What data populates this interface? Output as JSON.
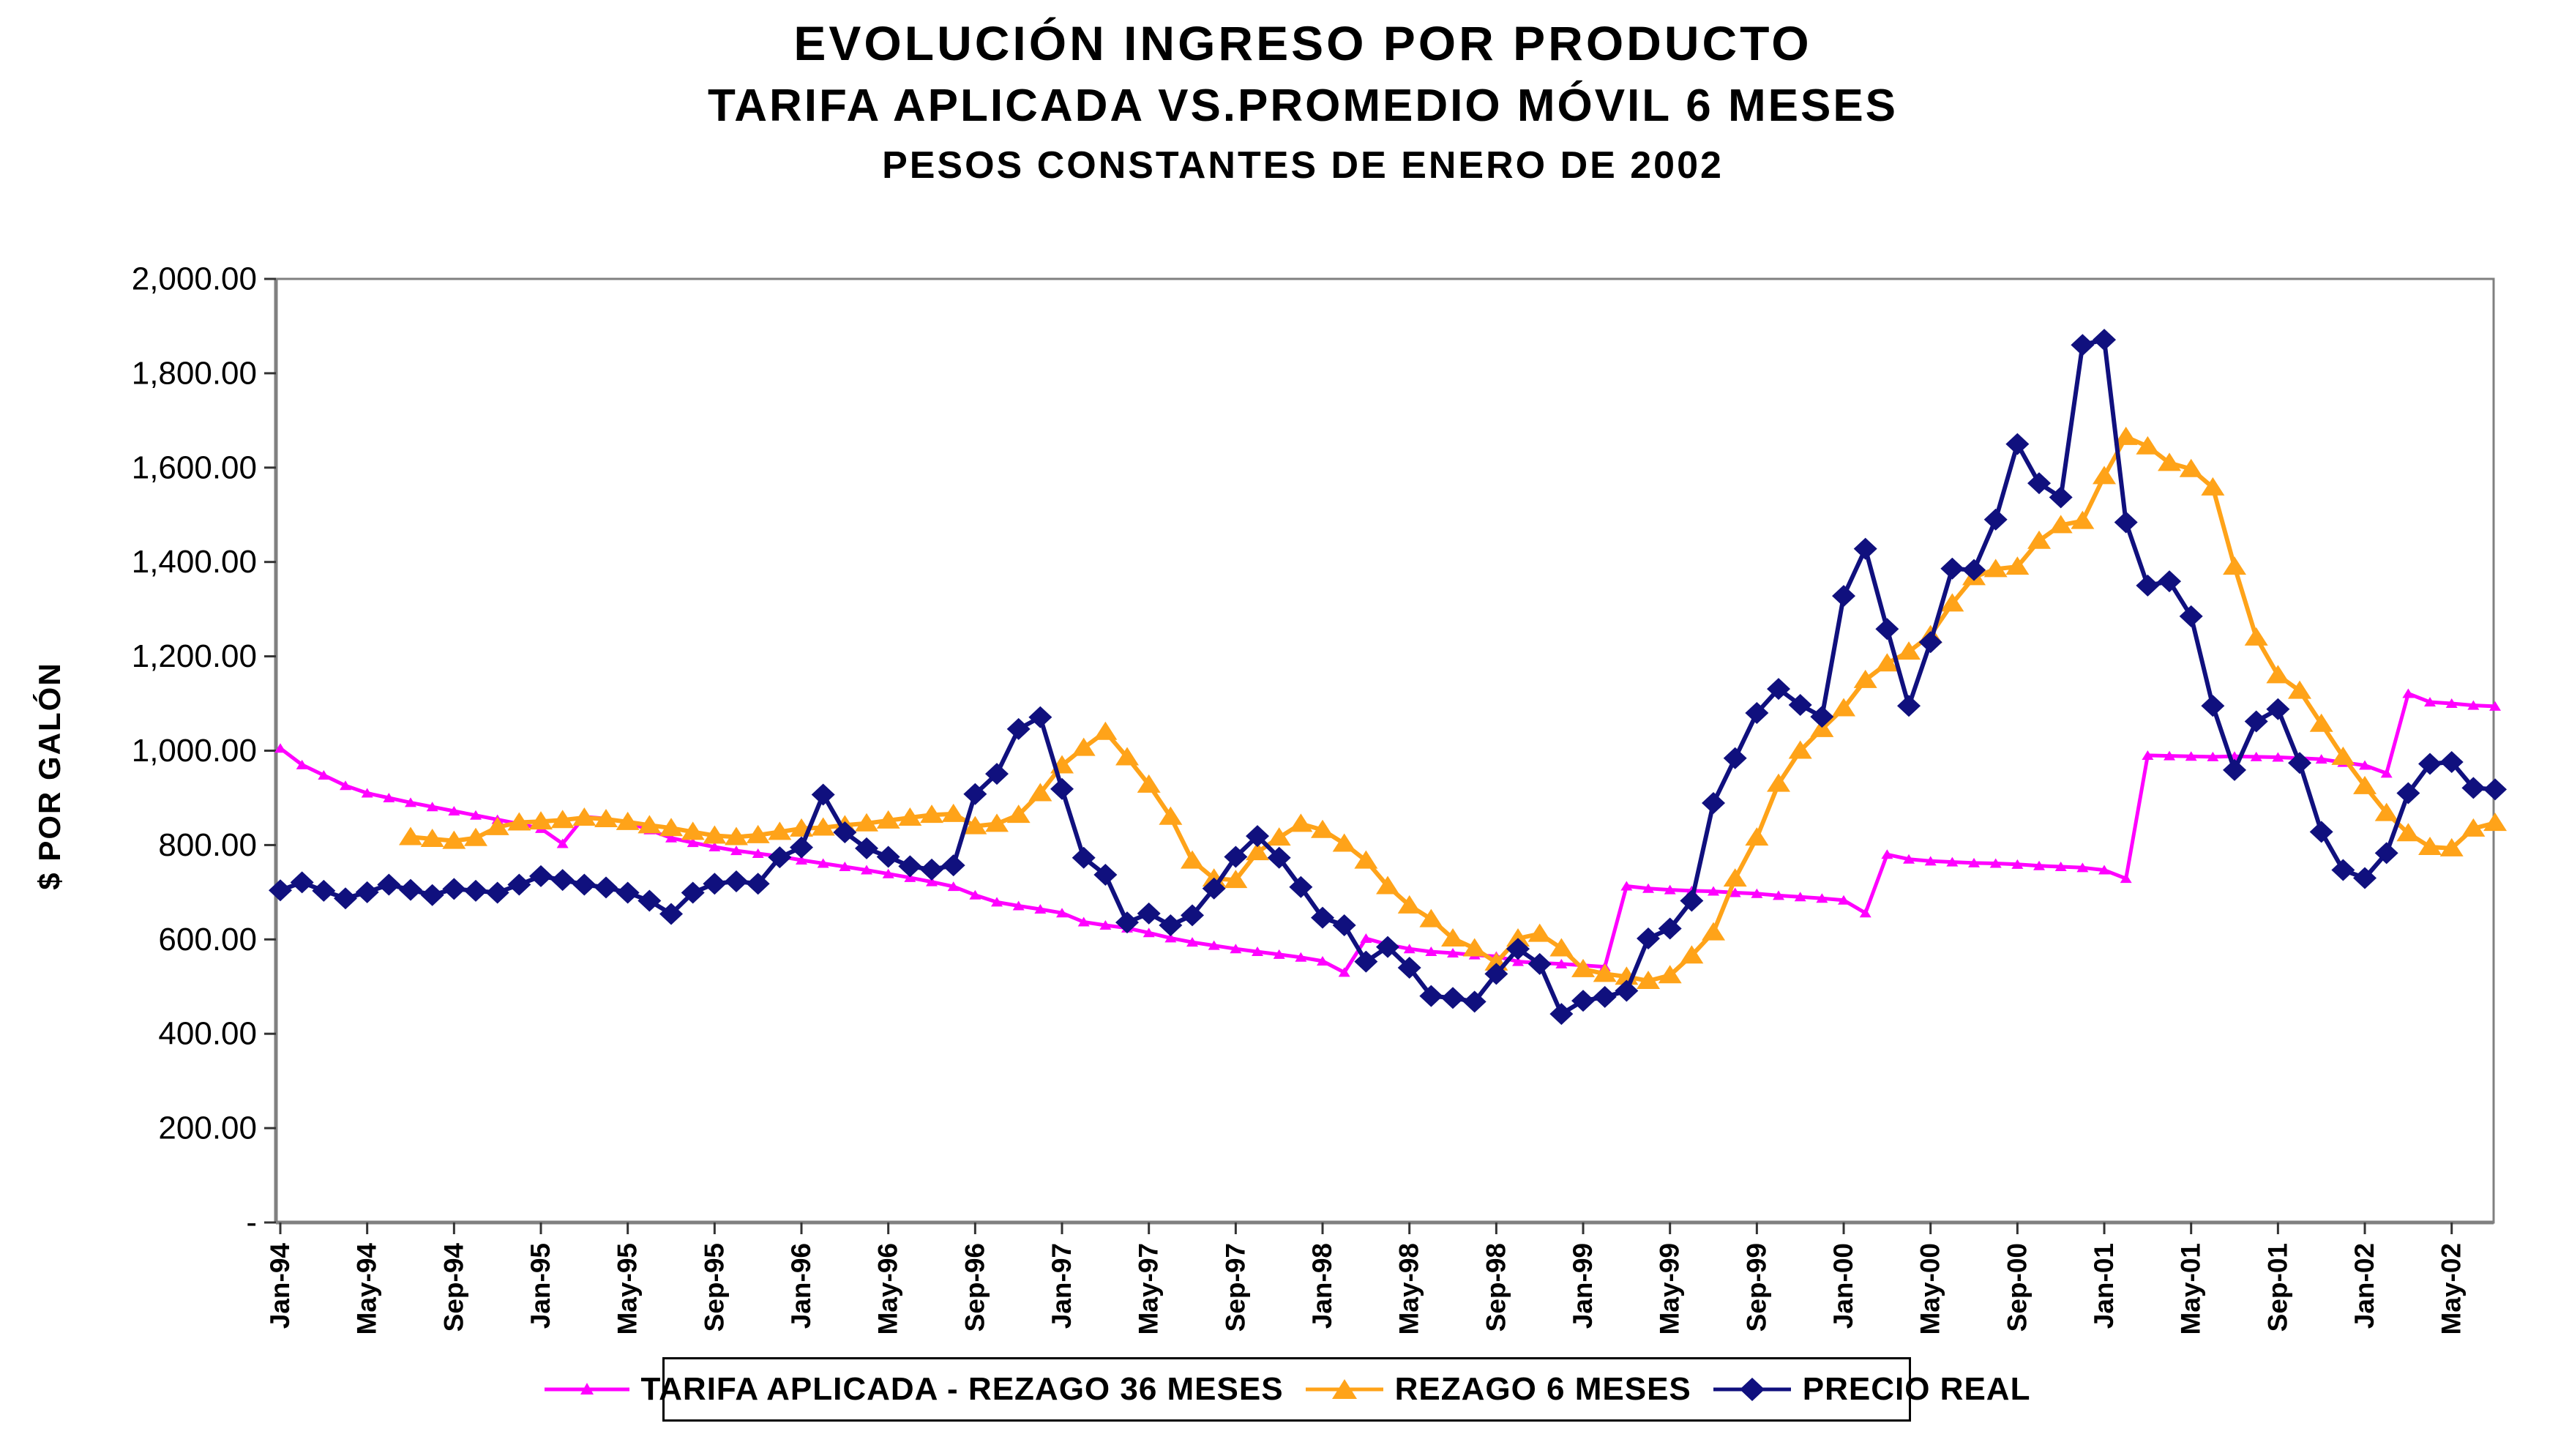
{
  "title": {
    "line1": "EVOLUCIÓN INGRESO POR PRODUCTO",
    "line2": "TARIFA APLICADA VS.PROMEDIO MÓVIL 6 MESES",
    "line3": "PESOS CONSTANTES DE ENERO DE 2002"
  },
  "y_axis": {
    "title": "$ POR GALÓN",
    "tick_labels": [
      "2,000.00",
      "1,800.00",
      "1,600.00",
      "1,400.00",
      "1,200.00",
      "1,000.00",
      "800.00",
      "600.00",
      "400.00",
      "200.00",
      "-"
    ],
    "min": 0,
    "max": 2000,
    "step": 200
  },
  "x_axis": {
    "tick_labels": [
      "Jan-94",
      "May-94",
      "Sep-94",
      "Jan-95",
      "May-95",
      "Sep-95",
      "Jan-96",
      "May-96",
      "Sep-96",
      "Jan-97",
      "May-97",
      "Sep-97",
      "Jan-98",
      "May-98",
      "Sep-98",
      "Jan-99",
      "May-99",
      "Sep-99",
      "Jan-00",
      "May-00",
      "Sep-00",
      "Jan-01",
      "May-01",
      "Sep-01",
      "Jan-02",
      "May-02"
    ]
  },
  "legend": [
    {
      "label": "TARIFA APLICADA - REZAGO 36 MESES",
      "color": "#FF00FF",
      "marker": "small-triangle"
    },
    {
      "label": "REZAGO 6 MESES",
      "color": "#FFA319",
      "marker": "triangle"
    },
    {
      "label": "PRECIO REAL",
      "color": "#10107E",
      "marker": "diamond"
    }
  ],
  "colors": {
    "tarifa": "#FF00FF",
    "rezago6": "#FFA319",
    "precio_real": "#10107E",
    "plot_border": "#808080",
    "tick": "#333333",
    "text": "#000000",
    "background": "#FFFFFF"
  },
  "chart_data": {
    "type": "line",
    "title": "EVOLUCIÓN INGRESO POR PRODUCTO - TARIFA APLICADA VS.PROMEDIO MÓVIL 6 MESES - PESOS CONSTANTES DE ENERO DE 2002",
    "xlabel": "",
    "ylabel": "$ POR GALÓN",
    "ylim": [
      0,
      2000
    ],
    "grid": false,
    "legend_position": "bottom",
    "months": [
      "Jan-94",
      "Feb-94",
      "Mar-94",
      "Apr-94",
      "May-94",
      "Jun-94",
      "Jul-94",
      "Aug-94",
      "Sep-94",
      "Oct-94",
      "Nov-94",
      "Dec-94",
      "Jan-95",
      "Feb-95",
      "Mar-95",
      "Apr-95",
      "May-95",
      "Jun-95",
      "Jul-95",
      "Aug-95",
      "Sep-95",
      "Oct-95",
      "Nov-95",
      "Dec-95",
      "Jan-96",
      "Feb-96",
      "Mar-96",
      "Apr-96",
      "May-96",
      "Jun-96",
      "Jul-96",
      "Aug-96",
      "Sep-96",
      "Oct-96",
      "Nov-96",
      "Dec-96",
      "Jan-97",
      "Feb-97",
      "Mar-97",
      "Apr-97",
      "May-97",
      "Jun-97",
      "Jul-97",
      "Aug-97",
      "Sep-97",
      "Oct-97",
      "Nov-97",
      "Dec-97",
      "Jan-98",
      "Feb-98",
      "Mar-98",
      "Apr-98",
      "May-98",
      "Jun-98",
      "Jul-98",
      "Aug-98",
      "Sep-98",
      "Oct-98",
      "Nov-98",
      "Dec-98",
      "Jan-99",
      "Feb-99",
      "Mar-99",
      "Apr-99",
      "May-99",
      "Jun-99",
      "Jul-99",
      "Aug-99",
      "Sep-99",
      "Oct-99",
      "Nov-99",
      "Dec-99",
      "Jan-00",
      "Feb-00",
      "Mar-00",
      "Apr-00",
      "May-00",
      "Jun-00",
      "Jul-00",
      "Aug-00",
      "Sep-00",
      "Oct-00",
      "Nov-00",
      "Dec-00",
      "Jan-01",
      "Feb-01",
      "Mar-01",
      "Apr-01",
      "May-01",
      "Jun-01",
      "Jul-01",
      "Aug-01",
      "Sep-01",
      "Oct-01",
      "Nov-01",
      "Dec-01",
      "Jan-02",
      "Feb-02",
      "Mar-02",
      "Apr-02",
      "May-02",
      "Jun-02",
      "Jul-02"
    ],
    "series": [
      {
        "name": "TARIFA APLICADA - REZAGO 36 MESES",
        "values": [
          1005,
          970,
          948,
          926,
          910,
          900,
          890,
          881,
          872,
          863,
          854,
          845,
          835,
          803,
          860,
          856,
          848,
          832,
          815,
          805,
          796,
          788,
          782,
          776,
          768,
          761,
          754,
          747,
          739,
          731,
          722,
          712,
          694,
          679,
          671,
          664,
          656,
          637,
          630,
          624,
          614,
          603,
          594,
          587,
          580,
          574,
          568,
          562,
          554,
          530,
          602,
          589,
          580,
          574,
          571,
          567,
          564,
          553,
          550,
          548,
          545,
          542,
          713,
          708,
          705,
          703,
          702,
          699,
          697,
          693,
          690,
          687,
          683,
          656,
          780,
          770,
          766,
          764,
          762,
          761,
          759,
          756,
          754,
          752,
          747,
          729,
          990,
          989,
          988,
          987,
          988,
          987,
          986,
          984,
          982,
          975,
          969,
          952,
          1121,
          1103,
          1100,
          1096,
          1094
        ]
      },
      {
        "name": "REZAGO 6 MESES",
        "values": [
          null,
          null,
          null,
          null,
          null,
          null,
          817,
          813,
          809,
          815,
          838,
          848,
          850,
          853,
          858,
          855,
          849,
          842,
          836,
          828,
          820,
          817,
          821,
          828,
          835,
          837,
          842,
          846,
          852,
          858,
          864,
          866,
          840,
          845,
          864,
          910,
          969,
          1006,
          1040,
          986,
          928,
          860,
          767,
          729,
          726,
          785,
          816,
          845,
          832,
          803,
          767,
          713,
          672,
          643,
          602,
          581,
          551,
          602,
          612,
          581,
          537,
          527,
          521,
          512,
          524,
          566,
          615,
          729,
          816,
          930,
          1000,
          1046,
          1090,
          1150,
          1185,
          1210,
          1245,
          1312,
          1368,
          1385,
          1390,
          1445,
          1478,
          1487,
          1582,
          1665,
          1645,
          1610,
          1597,
          1558,
          1390,
          1240,
          1160,
          1127,
          1057,
          987,
          925,
          868,
          825,
          796,
          793,
          835,
          847
        ]
      },
      {
        "name": "PRECIO REAL",
        "values": [
          704,
          721,
          703,
          687,
          700,
          716,
          705,
          694,
          707,
          703,
          699,
          716,
          734,
          726,
          716,
          710,
          699,
          682,
          654,
          699,
          718,
          723,
          718,
          774,
          795,
          907,
          827,
          793,
          775,
          755,
          748,
          757,
          908,
          951,
          1046,
          1071,
          919,
          773,
          737,
          636,
          655,
          630,
          651,
          708,
          775,
          819,
          773,
          711,
          646,
          630,
          553,
          584,
          540,
          480,
          476,
          468,
          527,
          580,
          548,
          442,
          470,
          478,
          491,
          602,
          623,
          682,
          889,
          984,
          1080,
          1131,
          1097,
          1072,
          1328,
          1428,
          1258,
          1095,
          1230,
          1386,
          1383,
          1490,
          1650,
          1567,
          1537,
          1860,
          1871,
          1484,
          1350,
          1359,
          1285,
          1095,
          959,
          1062,
          1088,
          974,
          828,
          747,
          730,
          783,
          910,
          972,
          976,
          921,
          918
        ]
      }
    ]
  }
}
